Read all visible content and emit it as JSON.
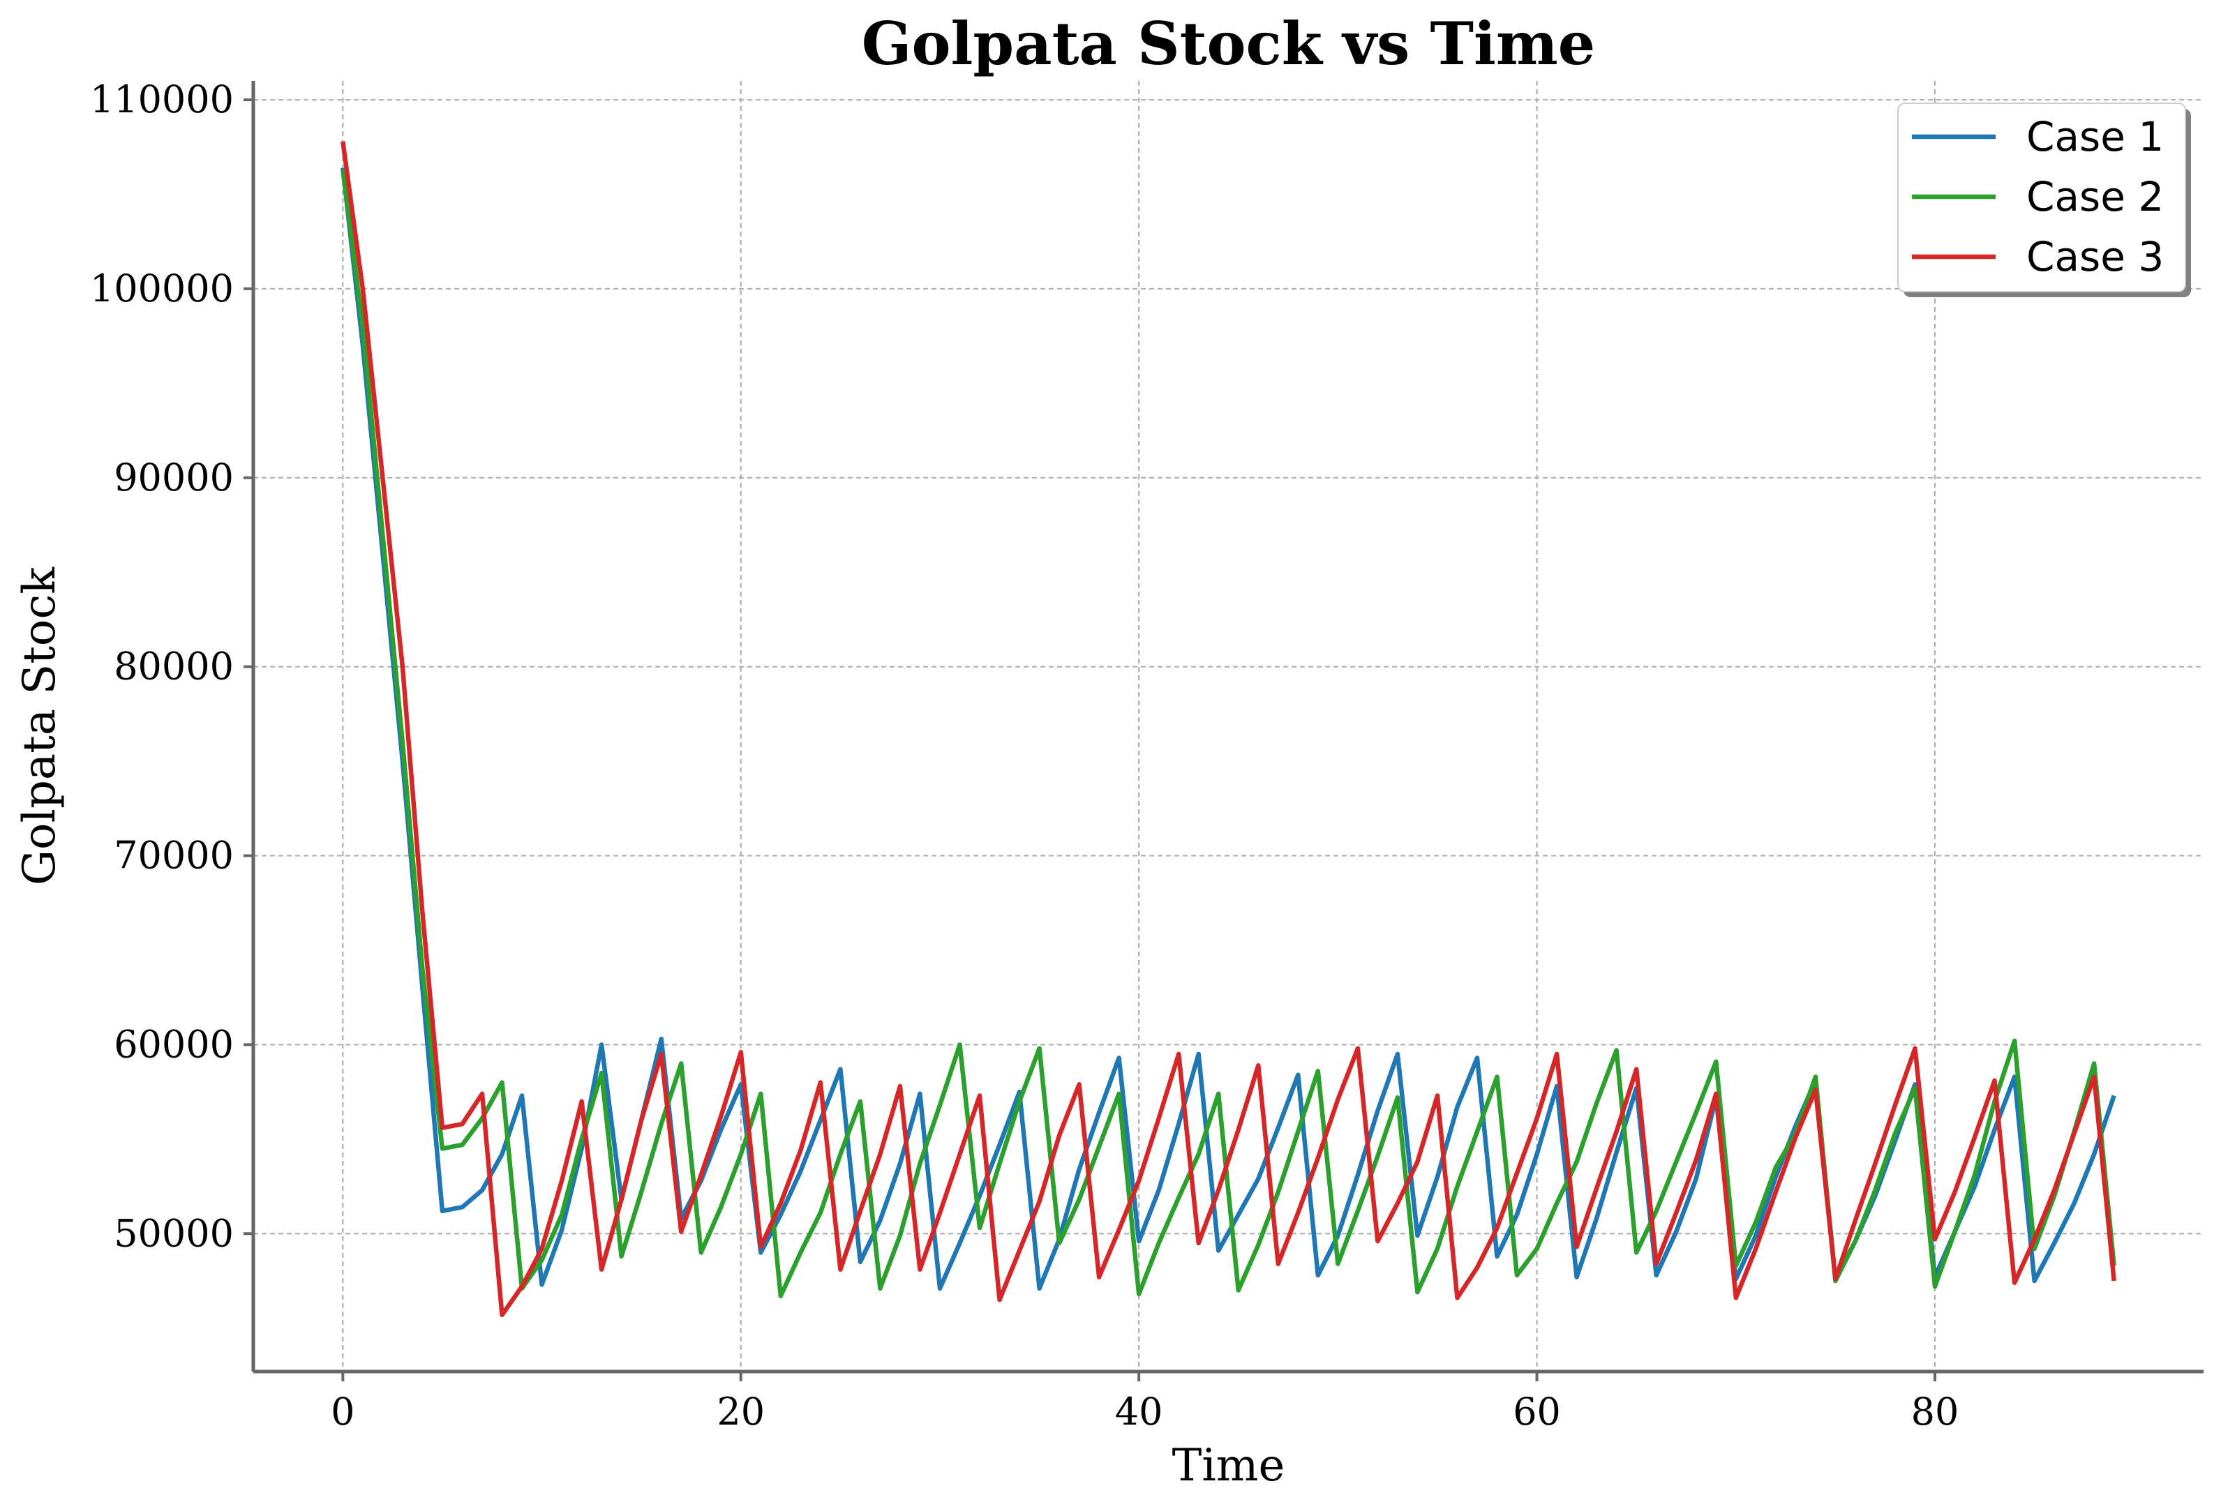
{
  "chart_data": {
    "type": "line",
    "title": "Golpata Stock vs Time",
    "xlabel": "Time",
    "ylabel": "Golpata Stock",
    "xlim": [
      -4.5,
      93.5
    ],
    "ylim": [
      42700,
      111000
    ],
    "xticks": [
      0,
      20,
      40,
      60,
      80
    ],
    "yticks": [
      50000,
      60000,
      70000,
      80000,
      90000,
      100000,
      110000
    ],
    "grid": true,
    "legend_position": "top-right",
    "x": [
      0,
      1,
      2,
      3,
      4,
      5,
      6,
      7,
      8,
      9,
      10,
      11,
      12,
      13,
      14,
      15,
      16,
      17,
      18,
      19,
      20,
      21,
      22,
      23,
      24,
      25,
      26,
      27,
      28,
      29,
      30,
      31,
      32,
      33,
      34,
      35,
      36,
      37,
      38,
      39,
      40,
      41,
      42,
      43,
      44,
      45,
      46,
      47,
      48,
      49,
      50,
      51,
      52,
      53,
      54,
      55,
      56,
      57,
      58,
      59,
      60,
      61,
      62,
      63,
      64,
      65,
      66,
      67,
      68,
      69,
      70,
      71,
      72,
      73,
      74,
      75,
      76,
      77,
      78,
      79,
      80,
      81,
      82,
      83,
      84,
      85,
      86,
      87,
      88,
      89
    ],
    "series": [
      {
        "name": "Case 1",
        "color": "#1f77b4",
        "values": [
          106400,
          97000,
          86000,
          75000,
          63000,
          51200,
          51400,
          52300,
          54200,
          57300,
          47300,
          50200,
          54500,
          60000,
          51800,
          56000,
          60300,
          50800,
          52800,
          55500,
          57900,
          49000,
          51000,
          53300,
          56000,
          58700,
          48500,
          50700,
          53700,
          57400,
          47100,
          49500,
          52000,
          54700,
          57500,
          47100,
          49700,
          53400,
          56400,
          59300,
          49600,
          52300,
          55800,
          59500,
          49100,
          51000,
          52900,
          55600,
          58400,
          47800,
          49900,
          53100,
          56500,
          59500,
          49900,
          53000,
          56700,
          59300,
          48800,
          51000,
          54200,
          57800,
          47700,
          50800,
          54300,
          57700,
          47800,
          50100,
          52900,
          57200,
          47600,
          49900,
          53000,
          55700,
          58100,
          47600,
          49600,
          52000,
          54900,
          57900,
          47700,
          50100,
          52500,
          55500,
          58300,
          47500,
          49500,
          51600,
          54200,
          57300
        ]
      },
      {
        "name": "Case 2",
        "color": "#2ca02c",
        "values": [
          106300,
          98000,
          87000,
          76000,
          64000,
          54500,
          54700,
          56100,
          58000,
          47100,
          48600,
          51000,
          55000,
          58500,
          48800,
          52200,
          55800,
          59000,
          49000,
          51400,
          54200,
          57400,
          46700,
          49000,
          51100,
          54200,
          57000,
          47100,
          49900,
          53700,
          56800,
          60000,
          50300,
          53700,
          57000,
          59800,
          49500,
          51800,
          54600,
          57400,
          46800,
          49500,
          51900,
          54200,
          57400,
          47000,
          49400,
          52200,
          55400,
          58600,
          48400,
          51200,
          54100,
          57200,
          46900,
          49200,
          52500,
          55400,
          58300,
          47800,
          49200,
          51600,
          53800,
          56900,
          59700,
          49000,
          51200,
          53800,
          56400,
          59100,
          48300,
          50600,
          53500,
          55300,
          58300,
          47500,
          49600,
          52300,
          55300,
          57700,
          47200,
          50100,
          53100,
          57000,
          60200,
          49200,
          52000,
          55400,
          59000,
          48300
        ]
      },
      {
        "name": "Case 3",
        "color": "#d62728",
        "values": [
          107800,
          100000,
          90000,
          80000,
          67000,
          55600,
          55800,
          57400,
          45700,
          47200,
          49200,
          52800,
          57000,
          48100,
          51800,
          56000,
          59500,
          50100,
          53100,
          56200,
          59600,
          49300,
          51600,
          54400,
          58000,
          48100,
          51200,
          54200,
          57800,
          48100,
          51100,
          54200,
          57300,
          46500,
          49100,
          51700,
          55200,
          57900,
          47700,
          50200,
          52800,
          56100,
          59500,
          49500,
          52300,
          55500,
          58900,
          48400,
          51100,
          54000,
          57100,
          59800,
          49600,
          51600,
          53800,
          57300,
          46600,
          48200,
          50300,
          53200,
          56100,
          59500,
          49300,
          52400,
          55400,
          58700,
          48400,
          51100,
          53900,
          57400,
          46600,
          49200,
          52200,
          55100,
          57600,
          47600,
          50700,
          53700,
          56800,
          59800,
          49700,
          52200,
          55100,
          58100,
          47400,
          49700,
          52300,
          55300,
          58300,
          47500
        ]
      }
    ]
  }
}
